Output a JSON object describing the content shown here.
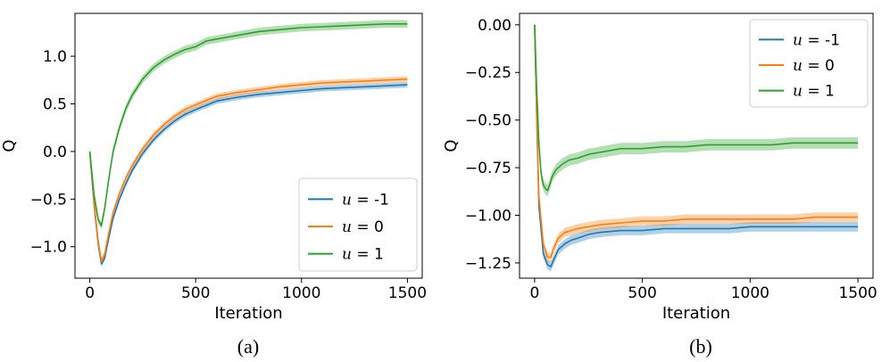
{
  "chart_data": [
    {
      "type": "line",
      "panel": "a",
      "caption": "(a)",
      "xlabel": "Iteration",
      "ylabel": "Q",
      "xlim": [
        -70,
        1570
      ],
      "ylim": [
        -1.33,
        1.45
      ],
      "xticks": [
        0,
        500,
        1000,
        1500
      ],
      "xtick_labels": [
        "0",
        "500",
        "1000",
        "1500"
      ],
      "yticks": [
        -1.0,
        -0.5,
        0.0,
        0.5,
        1.0
      ],
      "ytick_labels": [
        "−1.0",
        "−0.5",
        "0.0",
        "0.5",
        "1.0"
      ],
      "legend_position": "lower-right",
      "series": [
        {
          "name": "u = -1",
          "var": "u",
          "value": "-1",
          "color": "#1f77b4",
          "x": [
            0,
            20,
            40,
            55,
            70,
            90,
            110,
            140,
            170,
            200,
            250,
            300,
            350,
            400,
            450,
            500,
            600,
            700,
            800,
            900,
            1000,
            1100,
            1200,
            1300,
            1400,
            1500
          ],
          "y": [
            0.0,
            -0.55,
            -0.98,
            -1.18,
            -1.12,
            -0.9,
            -0.7,
            -0.5,
            -0.34,
            -0.2,
            -0.02,
            0.12,
            0.23,
            0.32,
            0.39,
            0.44,
            0.53,
            0.57,
            0.6,
            0.62,
            0.64,
            0.66,
            0.67,
            0.68,
            0.69,
            0.7
          ],
          "band": 0.03
        },
        {
          "name": "u = 0",
          "var": "u",
          "value": "0",
          "color": "#ff7f0e",
          "x": [
            0,
            20,
            40,
            55,
            70,
            90,
            110,
            140,
            170,
            200,
            250,
            300,
            350,
            400,
            450,
            500,
            600,
            700,
            800,
            900,
            1000,
            1100,
            1200,
            1300,
            1400,
            1500
          ],
          "y": [
            0.0,
            -0.52,
            -0.95,
            -1.15,
            -1.08,
            -0.85,
            -0.64,
            -0.44,
            -0.28,
            -0.15,
            0.03,
            0.17,
            0.28,
            0.37,
            0.44,
            0.49,
            0.58,
            0.62,
            0.65,
            0.68,
            0.7,
            0.72,
            0.73,
            0.74,
            0.75,
            0.76
          ],
          "band": 0.03
        },
        {
          "name": "u = 1",
          "var": "u",
          "value": "1",
          "color": "#2ca02c",
          "x": [
            0,
            20,
            40,
            55,
            70,
            90,
            110,
            140,
            170,
            200,
            250,
            300,
            350,
            400,
            450,
            500,
            550,
            600,
            700,
            800,
            900,
            1000,
            1100,
            1200,
            1300,
            1400,
            1500
          ],
          "y": [
            0.0,
            -0.45,
            -0.72,
            -0.78,
            -0.6,
            -0.28,
            0.0,
            0.25,
            0.45,
            0.59,
            0.76,
            0.88,
            0.96,
            1.02,
            1.07,
            1.1,
            1.16,
            1.18,
            1.22,
            1.26,
            1.28,
            1.3,
            1.31,
            1.32,
            1.33,
            1.34,
            1.34
          ],
          "band": 0.04
        }
      ]
    },
    {
      "type": "line",
      "panel": "b",
      "caption": "(b)",
      "xlabel": "Iteration",
      "ylabel": "Q",
      "xlim": [
        -70,
        1570
      ],
      "ylim": [
        -1.33,
        0.06
      ],
      "xticks": [
        0,
        500,
        1000,
        1500
      ],
      "xtick_labels": [
        "0",
        "500",
        "1000",
        "1500"
      ],
      "yticks": [
        0.0,
        -0.25,
        -0.5,
        -0.75,
        -1.0,
        -1.25
      ],
      "ytick_labels": [
        "0.00",
        "−0.25",
        "−0.50",
        "−0.75",
        "−1.00",
        "−1.25"
      ],
      "legend_position": "upper-right",
      "series": [
        {
          "name": "u = -1",
          "var": "u",
          "value": "-1",
          "color": "#1f77b4",
          "x": [
            0,
            10,
            20,
            40,
            60,
            75,
            90,
            110,
            140,
            170,
            200,
            250,
            300,
            400,
            500,
            600,
            700,
            800,
            900,
            1000,
            1100,
            1200,
            1300,
            1400,
            1500
          ],
          "y": [
            0.0,
            -0.5,
            -0.95,
            -1.2,
            -1.26,
            -1.27,
            -1.23,
            -1.18,
            -1.15,
            -1.13,
            -1.12,
            -1.1,
            -1.09,
            -1.08,
            -1.08,
            -1.07,
            -1.07,
            -1.07,
            -1.07,
            -1.06,
            -1.06,
            -1.06,
            -1.06,
            -1.06,
            -1.06
          ],
          "band": 0.025
        },
        {
          "name": "u = 0",
          "var": "u",
          "value": "0",
          "color": "#ff7f0e",
          "x": [
            0,
            10,
            20,
            40,
            60,
            75,
            90,
            110,
            140,
            170,
            200,
            250,
            300,
            400,
            500,
            600,
            700,
            800,
            900,
            1000,
            1100,
            1200,
            1300,
            1400,
            1500
          ],
          "y": [
            0.0,
            -0.48,
            -0.9,
            -1.15,
            -1.22,
            -1.22,
            -1.17,
            -1.12,
            -1.09,
            -1.08,
            -1.07,
            -1.06,
            -1.05,
            -1.04,
            -1.03,
            -1.03,
            -1.02,
            -1.02,
            -1.02,
            -1.02,
            -1.02,
            -1.02,
            -1.01,
            -1.01,
            -1.01
          ],
          "band": 0.025
        },
        {
          "name": "u = 1",
          "var": "u",
          "value": "1",
          "color": "#2ca02c",
          "x": [
            0,
            10,
            20,
            30,
            40,
            50,
            60,
            70,
            80,
            100,
            130,
            160,
            200,
            250,
            300,
            400,
            500,
            600,
            700,
            800,
            900,
            1000,
            1100,
            1200,
            1300,
            1400,
            1500
          ],
          "y": [
            0.0,
            -0.35,
            -0.62,
            -0.78,
            -0.84,
            -0.86,
            -0.87,
            -0.84,
            -0.8,
            -0.76,
            -0.73,
            -0.71,
            -0.7,
            -0.68,
            -0.67,
            -0.65,
            -0.65,
            -0.64,
            -0.64,
            -0.63,
            -0.63,
            -0.63,
            -0.63,
            -0.62,
            -0.62,
            -0.62,
            -0.62
          ],
          "band": 0.03
        }
      ]
    }
  ]
}
